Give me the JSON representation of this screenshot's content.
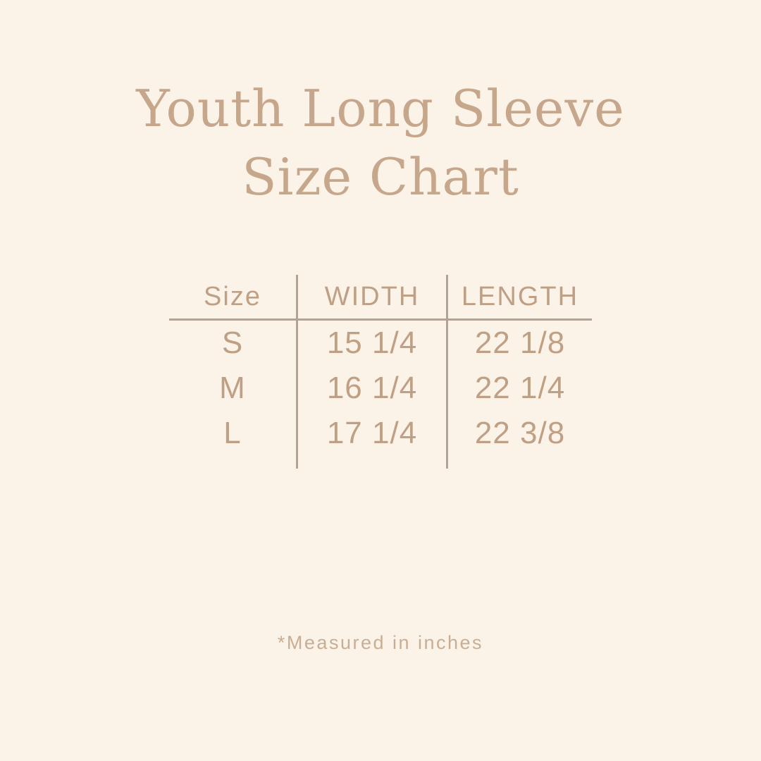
{
  "title": {
    "line1": "Youth Long Sleeve",
    "line2": "Size Chart"
  },
  "table": {
    "headers": [
      "Size",
      "WIDTH",
      "LENGTH"
    ],
    "rows": [
      {
        "size": "S",
        "width": "15 1/4",
        "length": "22 1/8"
      },
      {
        "size": "M",
        "width": "16 1/4",
        "length": "22 1/4"
      },
      {
        "size": "L",
        "width": "17 1/4",
        "length": "22 3/8"
      }
    ]
  },
  "footnote": {
    "text": "*Measured in inches"
  },
  "colors": {
    "background": "#FBF2E8",
    "title-text": "#C6A78B",
    "table-text": "#BFA084",
    "line": "#B2A396",
    "footnote-text": "#C9AE94"
  },
  "chart_data": {
    "type": "table",
    "title": "Youth Long Sleeve Size Chart",
    "columns": [
      "Size",
      "WIDTH",
      "LENGTH"
    ],
    "rows": [
      [
        "S",
        "15 1/4",
        "22 1/8"
      ],
      [
        "M",
        "16 1/4",
        "22 1/4"
      ],
      [
        "L",
        "17 1/4",
        "22 3/8"
      ]
    ],
    "units": "inches",
    "footnote": "*Measured in inches"
  }
}
